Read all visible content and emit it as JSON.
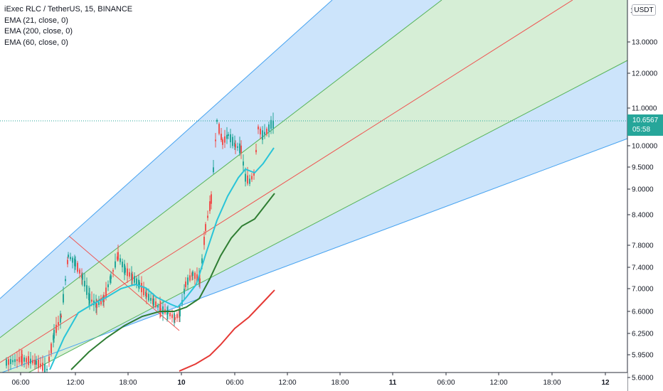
{
  "header": {
    "symbol_line": "iExec RLC / TetherUS, 15, BINANCE",
    "indicators": [
      "EMA (21, close, 0)",
      "EMA (200, close, 0)",
      "EMA (60, close, 0)"
    ]
  },
  "price_axis": {
    "currency_badge": "USDT",
    "top_partial_label": "1",
    "labels": [
      "13.0000",
      "12.0000",
      "11.0000",
      "10.0000",
      "9.5000",
      "9.0000",
      "8.4000",
      "7.8000",
      "7.4000",
      "7.0000",
      "6.6000",
      "6.2500",
      "5.9500",
      "5.6000"
    ]
  },
  "time_axis": {
    "labels": [
      "06:00",
      "12:00",
      "18:00",
      "10",
      "06:00",
      "12:00",
      "18:00",
      "11",
      "06:00",
      "12:00",
      "18:00",
      "12"
    ],
    "bold": [
      "10",
      "11",
      "12"
    ]
  },
  "last_price": {
    "value": "10.6567",
    "countdown": "05:58"
  },
  "colors": {
    "up": "#26a69a",
    "down": "#ef5350",
    "channel_outer_fill": "#cce4fb",
    "channel_inner_fill": "#d6eed4",
    "channel_outer_line": "#47a3f0",
    "channel_inner_line": "#57b45a",
    "channel_mid_line": "#ef5350",
    "ema21": "#29c4d8",
    "ema60": "#2e7d32",
    "ema200": "#e53935"
  }
}
